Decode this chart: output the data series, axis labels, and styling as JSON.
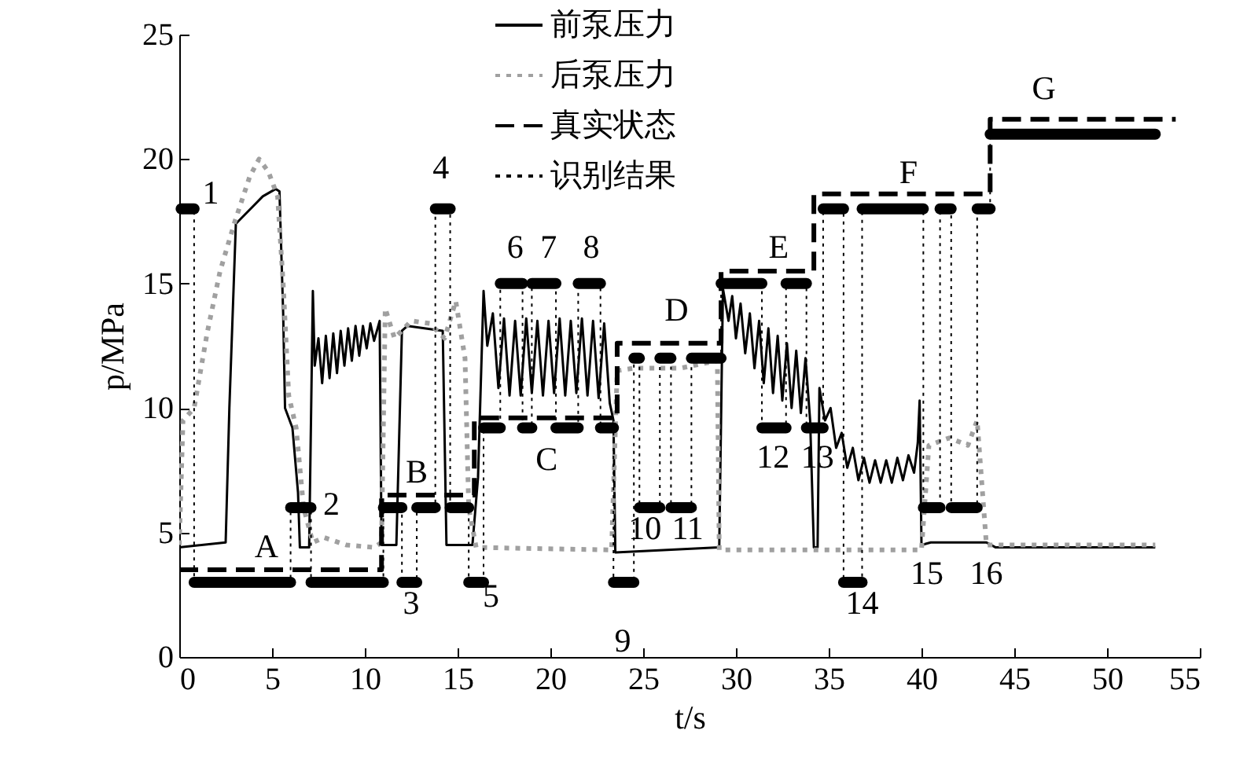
{
  "chart_data": {
    "type": "line",
    "xlabel": "t/s",
    "ylabel": "p/MPa",
    "xlim": [
      0,
      55
    ],
    "ylim": [
      0,
      25
    ],
    "xticks": [
      0,
      5,
      10,
      15,
      20,
      25,
      30,
      35,
      40,
      45,
      50,
      55
    ],
    "yticks": [
      0,
      5,
      10,
      15,
      20,
      25
    ],
    "legend": "top",
    "series": [
      {
        "name": "前泵压力",
        "line_style": "solid",
        "color": "#000000",
        "x": [
          0,
          2.5,
          2.7,
          3.05,
          4.5,
          5.2,
          5.4,
          5.6,
          5.7,
          6.1,
          6.4,
          6.5,
          7.0,
          7.2,
          7.3,
          7.5,
          7.7,
          7.9,
          8.1,
          8.3,
          8.5,
          8.7,
          8.9,
          9.1,
          9.3,
          9.5,
          9.7,
          9.9,
          10.1,
          10.3,
          10.5,
          10.8,
          10.9,
          11.7,
          12.0,
          12.3,
          14.2,
          14.4,
          15.8,
          16.1,
          16.4,
          16.6,
          16.9,
          17.2,
          17.5,
          17.8,
          18.1,
          18.4,
          18.7,
          19.0,
          19.3,
          19.6,
          19.9,
          20.2,
          20.5,
          20.8,
          21.1,
          21.4,
          21.7,
          22.0,
          22.3,
          22.6,
          22.9,
          23.2,
          23.4,
          23.5,
          29.1,
          29.3,
          29.6,
          29.8,
          30.0,
          30.25,
          30.5,
          30.75,
          31.0,
          31.25,
          31.5,
          31.75,
          32.0,
          32.25,
          32.5,
          32.75,
          33.0,
          33.25,
          33.5,
          33.75,
          34.0,
          34.2,
          34.4,
          34.5,
          34.8,
          35.1,
          35.4,
          35.7,
          36.0,
          36.3,
          36.6,
          36.9,
          37.2,
          37.5,
          37.8,
          38.1,
          38.4,
          38.7,
          39.0,
          39.3,
          39.6,
          39.8,
          39.9,
          40.0,
          40.5,
          43.5,
          44.0,
          52.6
        ],
        "values": [
          4.4,
          4.6,
          10,
          17.4,
          18.5,
          18.8,
          18.7,
          13.8,
          10,
          9.2,
          6.6,
          4.4,
          4.4,
          14.7,
          11.7,
          12.8,
          11,
          12.9,
          11.2,
          13,
          11.4,
          13.1,
          11.7,
          13.2,
          11.9,
          13.3,
          12.1,
          13.3,
          12.4,
          13.4,
          12.7,
          13.5,
          4.5,
          4.5,
          13.1,
          13.3,
          13.1,
          4.5,
          4.5,
          7.2,
          14.7,
          12.5,
          13.8,
          10.8,
          13.6,
          10.5,
          13.5,
          10.5,
          13.6,
          10.6,
          13.5,
          10.5,
          13.5,
          10.6,
          13.6,
          10.5,
          13.5,
          10.6,
          13.6,
          10.5,
          13.5,
          10.4,
          13.4,
          10.2,
          9.5,
          4.2,
          4.4,
          14.8,
          13.5,
          14.5,
          12.8,
          14.2,
          12.2,
          13.8,
          11.6,
          13.5,
          11.0,
          13.2,
          10.6,
          12.9,
          10.3,
          12.6,
          10.0,
          12.3,
          9.8,
          12.0,
          9.5,
          4.4,
          4.4,
          10.8,
          9.5,
          10.0,
          8.4,
          9.0,
          7.6,
          8.4,
          7.1,
          8.0,
          7.0,
          7.9,
          7.0,
          7.9,
          7.0,
          8.0,
          7.1,
          8.1,
          7.4,
          8.6,
          10.3,
          4.5,
          4.6,
          4.6,
          4.4,
          4.4
        ]
      },
      {
        "name": "后泵压力",
        "line_style": "dotted",
        "color": "#a0a0a0",
        "x": [
          0,
          0.2,
          0.8,
          1.5,
          2.2,
          3.0,
          3.8,
          4.3,
          4.8,
          5.3,
          5.6,
          5.9,
          6.3,
          6.7,
          7.2,
          7.8,
          9,
          10.5,
          10.9,
          11.1,
          11.6,
          12.5,
          13.5,
          14.3,
          14.9,
          15.4,
          15.6,
          16.0,
          23.3,
          23.6,
          24.5,
          27,
          29.0,
          29.1,
          40.0,
          40.4,
          41.5,
          42.5,
          43.0,
          43.5,
          52.6
        ],
        "values": [
          4.5,
          9.5,
          10,
          13,
          15.5,
          17.5,
          19.3,
          20,
          19.5,
          18.5,
          15,
          10.5,
          9.2,
          6,
          4.6,
          4.8,
          4.5,
          4.4,
          4.6,
          14,
          12.8,
          13.5,
          13.4,
          12.8,
          14.3,
          12,
          6,
          4.4,
          4.3,
          11.5,
          11.6,
          11.6,
          11.9,
          4.3,
          4.3,
          8.5,
          8.8,
          8.5,
          9.5,
          4.5,
          4.5
        ]
      },
      {
        "name": "真实状态",
        "type": "step",
        "line_style": "dashed",
        "color": "#000000",
        "x": [
          0,
          10.9,
          15.9,
          23.6,
          29.2,
          34.2,
          43.7,
          53.7
        ],
        "values": [
          3.5,
          6.5,
          9.6,
          12.6,
          15.5,
          18.6,
          21.6,
          21.6
        ]
      },
      {
        "name": "识别结果",
        "type": "step",
        "line_style": "dotted",
        "color": "#000000",
        "x": [
          0.1,
          0.8,
          6.0,
          7.1,
          11.0,
          12.0,
          12.8,
          13.8,
          14.6,
          15.6,
          16.4,
          17.3,
          18.5,
          19.0,
          20.3,
          21.5,
          22.7,
          23.4,
          24.5,
          24.8,
          25.9,
          26.5,
          27.6,
          29.2,
          31.4,
          32.7,
          33.8,
          34.7,
          35.8,
          36.8,
          40.1,
          41.0,
          41.6,
          43.0,
          43.7,
          52.6
        ],
        "values": [
          18,
          3,
          6,
          3,
          6,
          3,
          6,
          18,
          6,
          3,
          9.2,
          15,
          9.2,
          15,
          9.2,
          15,
          9.2,
          3,
          12,
          6,
          12,
          6,
          12,
          15,
          9.2,
          15,
          9.2,
          18,
          3,
          18,
          6,
          18,
          6,
          18,
          21,
          21
        ]
      }
    ],
    "annotations": [
      "1",
      "2",
      "3",
      "4",
      "5",
      "6",
      "7",
      "8",
      "9",
      "10",
      "11",
      "12",
      "13",
      "14",
      "15",
      "16",
      "A",
      "B",
      "C",
      "D",
      "E",
      "F",
      "G"
    ]
  }
}
